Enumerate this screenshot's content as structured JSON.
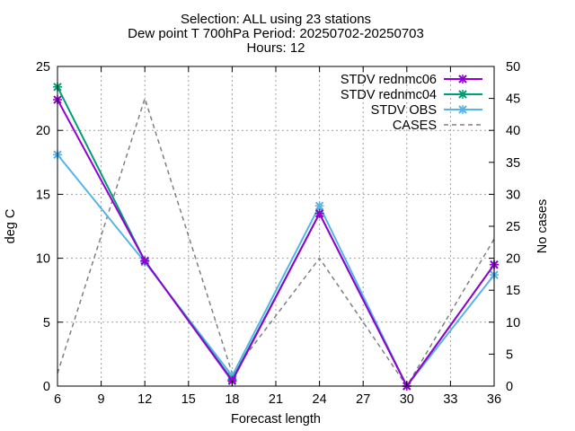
{
  "chart_data": {
    "type": "line",
    "title_lines": [
      "Selection: ALL using    23 stations",
      "Dew point T 700hPa   Period: 20250702-20250703",
      "Hours: 12"
    ],
    "xlabel": "Forecast length",
    "ylabel": "deg C",
    "y2label": "No cases",
    "x": [
      6,
      12,
      18,
      24,
      30,
      36
    ],
    "xlim": [
      6,
      36
    ],
    "xticks": [
      "6",
      "9",
      "12",
      "15",
      "18",
      "21",
      "24",
      "27",
      "30",
      "33",
      "36"
    ],
    "ylim": [
      0,
      25
    ],
    "yticks": [
      "0",
      "5",
      "10",
      "15",
      "20",
      "25"
    ],
    "y2lim": [
      0,
      50
    ],
    "y2ticks": [
      "0",
      "5",
      "10",
      "15",
      "20",
      "25",
      "30",
      "35",
      "40",
      "45",
      "50"
    ],
    "grid": true,
    "legend_position": "top-right",
    "series": [
      {
        "name": "STDV rednmc06",
        "axis": "y1",
        "color": "#9400d3",
        "style": "solid",
        "marker": "x",
        "values": [
          22.4,
          9.8,
          0.4,
          13.5,
          0.0,
          9.5
        ]
      },
      {
        "name": "STDV rednmc04",
        "axis": "y1",
        "color": "#009e73",
        "style": "solid",
        "marker": "x",
        "values": [
          23.4,
          9.8,
          0.5,
          13.5,
          0.0,
          9.5
        ]
      },
      {
        "name": "STDV OBS",
        "axis": "y1",
        "color": "#56b4e9",
        "style": "solid",
        "marker": "x",
        "values": [
          18.1,
          9.7,
          0.8,
          14.1,
          0.0,
          8.7
        ]
      },
      {
        "name": "CASES",
        "axis": "y2",
        "color": "#808080",
        "style": "dashed",
        "marker": "none",
        "values": [
          2,
          45,
          2,
          20,
          0,
          23
        ]
      }
    ]
  }
}
